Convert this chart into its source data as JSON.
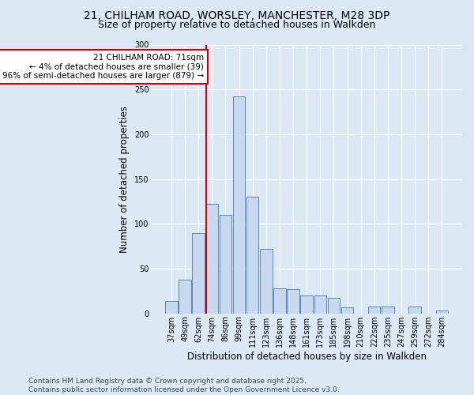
{
  "title1": "21, CHILHAM ROAD, WORSLEY, MANCHESTER, M28 3DP",
  "title2": "Size of property relative to detached houses in Walkden",
  "xlabel": "Distribution of detached houses by size in Walkden",
  "ylabel": "Number of detached properties",
  "categories": [
    "37sqm",
    "49sqm",
    "62sqm",
    "74sqm",
    "86sqm",
    "99sqm",
    "111sqm",
    "123sqm",
    "136sqm",
    "148sqm",
    "161sqm",
    "173sqm",
    "185sqm",
    "198sqm",
    "210sqm",
    "222sqm",
    "235sqm",
    "247sqm",
    "259sqm",
    "272sqm",
    "284sqm"
  ],
  "values": [
    14,
    38,
    90,
    122,
    110,
    242,
    130,
    72,
    28,
    27,
    20,
    20,
    17,
    7,
    0,
    8,
    8,
    0,
    8,
    0,
    3
  ],
  "bar_color": "#c8d8ee",
  "bar_edge_color": "#5588bb",
  "vline_x_index": 2.55,
  "vline_color": "#cc0000",
  "annotation_text": "21 CHILHAM ROAD: 71sqm\n← 4% of detached houses are smaller (39)\n96% of semi-detached houses are larger (879) →",
  "annotation_box_color": "#ffffff",
  "annotation_box_edge_color": "#cc0000",
  "background_color": "#dce8f4",
  "plot_bg_color": "#dce8f4",
  "footer_text": "Contains HM Land Registry data © Crown copyright and database right 2025.\nContains public sector information licensed under the Open Government Licence v3.0.",
  "ylim": [
    0,
    300
  ],
  "yticks": [
    0,
    50,
    100,
    150,
    200,
    250,
    300
  ],
  "title_fontsize": 10,
  "subtitle_fontsize": 9,
  "axis_label_fontsize": 8.5,
  "tick_fontsize": 7,
  "footer_fontsize": 6.5,
  "annot_fontsize": 7.5
}
